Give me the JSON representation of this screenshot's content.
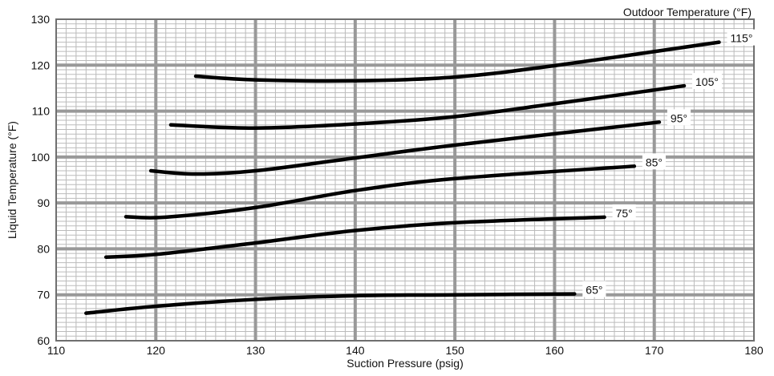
{
  "chart_data": {
    "type": "line",
    "title": "",
    "xlabel": "Suction Pressure (psig)",
    "ylabel": "Liquid Temperature (°F)",
    "legend_title": "Outdoor Temperature (°F)",
    "xlim": [
      110,
      180
    ],
    "ylim": [
      60,
      130
    ],
    "xticks": [
      110,
      120,
      130,
      140,
      150,
      160,
      170,
      180
    ],
    "yticks": [
      60,
      70,
      80,
      90,
      100,
      110,
      120,
      130
    ],
    "grid": {
      "major": true,
      "minor": true,
      "major_color": "#999999",
      "minor_color": "#bbbbbb"
    },
    "line_color": "#000000",
    "series": [
      {
        "name": "65°",
        "x": [
          113,
          120,
          130,
          140,
          150,
          162
        ],
        "y": [
          66.0,
          67.5,
          69.0,
          69.8,
          70.0,
          70.2
        ]
      },
      {
        "name": "75°",
        "x": [
          115,
          120,
          130,
          140,
          150,
          165
        ],
        "y": [
          78.2,
          78.8,
          81.3,
          84.0,
          85.7,
          86.9
        ]
      },
      {
        "name": "85°",
        "x": [
          117,
          121,
          130,
          140,
          150,
          168
        ],
        "y": [
          87.0,
          86.9,
          89.0,
          92.7,
          95.3,
          98.0
        ]
      },
      {
        "name": "95°",
        "x": [
          119.5,
          124,
          130,
          140,
          150,
          170.5
        ],
        "y": [
          97.0,
          96.3,
          97.0,
          99.8,
          102.6,
          107.6
        ]
      },
      {
        "name": "105°",
        "x": [
          121.5,
          130,
          140,
          150,
          160,
          173
        ],
        "y": [
          107.0,
          106.3,
          107.2,
          108.8,
          111.6,
          115.5
        ]
      },
      {
        "name": "115°",
        "x": [
          124,
          130,
          140,
          150,
          160,
          176.5
        ],
        "y": [
          117.6,
          116.8,
          116.6,
          117.4,
          119.9,
          125.0
        ]
      }
    ]
  }
}
